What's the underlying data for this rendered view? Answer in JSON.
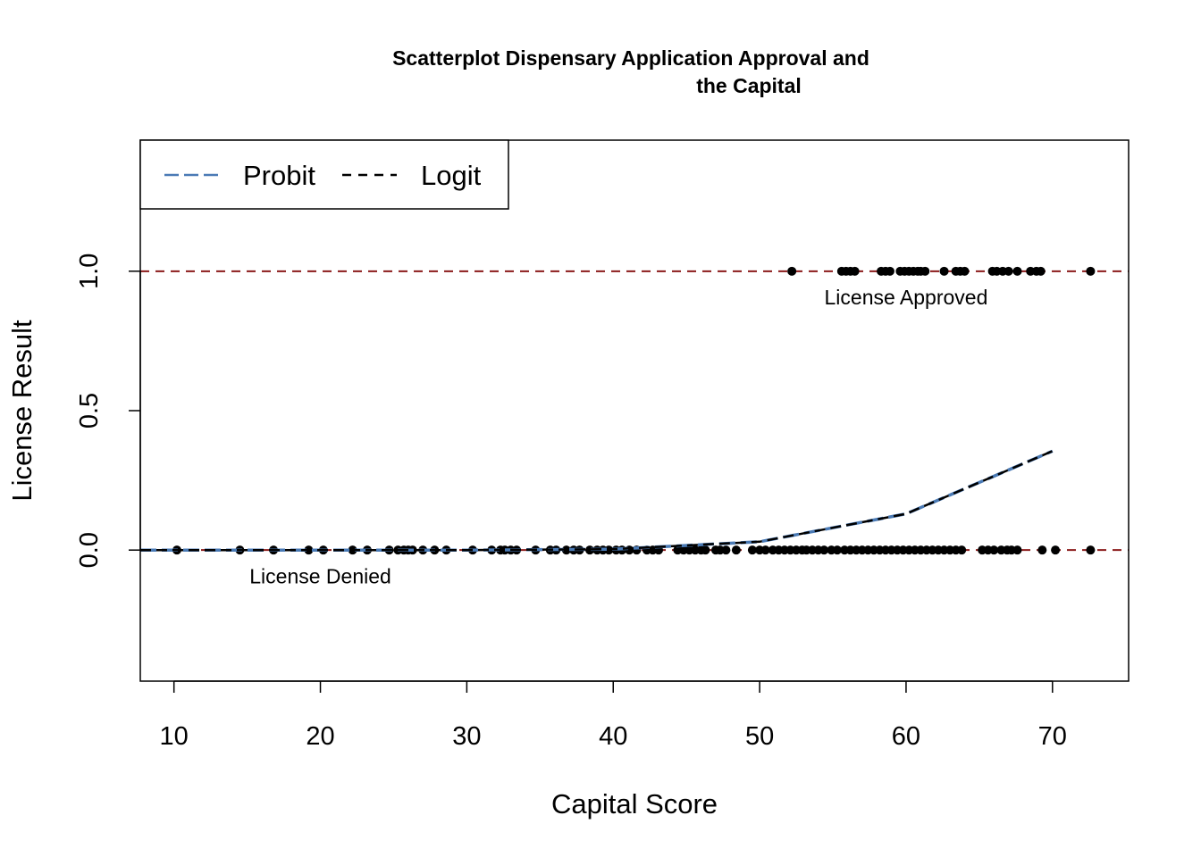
{
  "chart_data": {
    "type": "scatter",
    "title_lines": [
      "Scatterplot Dispensary Application Approval and",
      "the Capital"
    ],
    "xlabel": "Capital Score",
    "ylabel": "License Result",
    "xlim": [
      7.7,
      75.2
    ],
    "ylim": [
      -0.47,
      1.47
    ],
    "x_ticks": [
      10,
      20,
      30,
      40,
      50,
      60,
      70
    ],
    "x_tick_labels": [
      "10",
      "20",
      "30",
      "40",
      "50",
      "60",
      "70"
    ],
    "y_ticks": [
      0.0,
      0.5,
      1.0
    ],
    "y_tick_labels": [
      "0.0",
      "0.5",
      "1.0"
    ],
    "reference_lines": [
      {
        "y": 0.0,
        "color": "#8b1a1a",
        "style": "dashed"
      },
      {
        "y": 1.0,
        "color": "#8b1a1a",
        "style": "dashed"
      }
    ],
    "annotations": [
      {
        "text": "License Approved",
        "x": 60.0,
        "y": 0.9
      },
      {
        "text": "License Denied",
        "x": 20.0,
        "y": -0.1
      }
    ],
    "legend": {
      "position": "top-left",
      "entries": [
        {
          "label": "Probit",
          "color": "#4a7ab5",
          "style": "longdash"
        },
        {
          "label": "Logit",
          "color": "#000000",
          "style": "dashed"
        }
      ]
    },
    "series": [
      {
        "name": "Probit",
        "type": "line",
        "color": "#4a7ab5",
        "x": [
          7.7,
          20,
          30,
          40,
          50,
          60,
          70
        ],
        "y": [
          0.0,
          0.0,
          0.0,
          0.003,
          0.03,
          0.13,
          0.355
        ]
      },
      {
        "name": "Logit",
        "type": "line",
        "color": "#000000",
        "x": [
          7.7,
          20,
          30,
          40,
          50,
          60,
          70
        ],
        "y": [
          0.0,
          0.0,
          0.0,
          0.003,
          0.03,
          0.13,
          0.355
        ]
      },
      {
        "name": "",
        "type": "points",
        "color": "#000000",
        "x": [
          52.2,
          55.6,
          55.9,
          56.2,
          56.5,
          58.3,
          58.6,
          58.9,
          59.6,
          59.9,
          60.2,
          60.5,
          60.8,
          61.0,
          61.3,
          62.6,
          63.4,
          63.7,
          64.0,
          65.9,
          66.2,
          66.6,
          67.0,
          67.6,
          68.5,
          68.9,
          69.2,
          72.6
        ],
        "y": [
          1,
          1,
          1,
          1,
          1,
          1,
          1,
          1,
          1,
          1,
          1,
          1,
          1,
          1,
          1,
          1,
          1,
          1,
          1,
          1,
          1,
          1,
          1,
          1,
          1,
          1,
          1,
          1
        ]
      },
      {
        "name": "",
        "type": "points",
        "color": "#000000",
        "x": [
          10.2,
          14.5,
          16.8,
          19.2,
          20.2,
          22.2,
          23.2,
          24.7,
          25.3,
          25.7,
          26.0,
          26.3,
          27.0,
          27.8,
          28.6,
          30.4,
          31.7,
          32.3,
          32.6,
          33.0,
          33.4,
          34.7,
          35.7,
          36.1,
          36.8,
          37.3,
          37.7,
          38.4,
          38.9,
          39.3,
          39.7,
          40.2,
          40.6,
          41.1,
          41.6,
          42.3,
          42.7,
          43.1,
          44.4,
          44.8,
          45.2,
          45.6,
          46.0,
          46.3,
          47.0,
          47.3,
          47.7,
          48.4,
          49.5,
          50.0,
          50.4,
          50.9,
          51.3,
          51.7,
          52.1,
          52.5,
          52.9,
          53.2,
          53.6,
          54.0,
          54.4,
          54.9,
          55.3,
          55.8,
          56.2,
          56.6,
          57.0,
          57.4,
          57.8,
          58.2,
          58.6,
          59.0,
          59.4,
          59.8,
          60.2,
          60.6,
          61.0,
          61.4,
          61.8,
          62.2,
          62.6,
          63.0,
          63.4,
          63.8,
          65.2,
          65.6,
          66.0,
          66.5,
          66.9,
          67.2,
          67.6,
          69.3,
          70.2,
          72.6
        ],
        "y": [
          0,
          0,
          0,
          0,
          0,
          0,
          0,
          0,
          0,
          0,
          0,
          0,
          0,
          0,
          0,
          0,
          0,
          0,
          0,
          0,
          0,
          0,
          0,
          0,
          0,
          0,
          0,
          0,
          0,
          0,
          0,
          0,
          0,
          0,
          0,
          0,
          0,
          0,
          0,
          0,
          0,
          0,
          0,
          0,
          0,
          0,
          0,
          0,
          0,
          0,
          0,
          0,
          0,
          0,
          0,
          0,
          0,
          0,
          0,
          0,
          0,
          0,
          0,
          0,
          0,
          0,
          0,
          0,
          0,
          0,
          0,
          0,
          0,
          0,
          0,
          0,
          0,
          0,
          0,
          0,
          0,
          0,
          0,
          0,
          0,
          0,
          0,
          0,
          0,
          0,
          0,
          0,
          0,
          0
        ]
      }
    ]
  }
}
